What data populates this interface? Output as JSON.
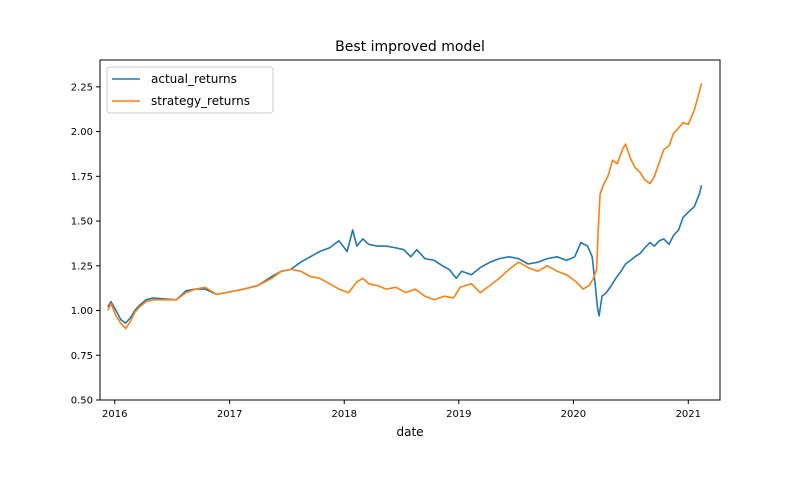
{
  "chart_data": {
    "type": "line",
    "title": "Best improved model",
    "xlabel": "date",
    "ylabel": "",
    "xlim": [
      "2015-11-15",
      "2021-04-12"
    ],
    "ylim": [
      0.5,
      2.4
    ],
    "x_ticks": [
      "2016",
      "2017",
      "2018",
      "2019",
      "2020",
      "2021"
    ],
    "y_ticks": [
      "0.50",
      "0.75",
      "1.00",
      "1.25",
      "1.50",
      "1.75",
      "2.00",
      "2.25"
    ],
    "grid": false,
    "legend_position": "top-left",
    "series": [
      {
        "name": "actual_returns",
        "color": "#1f77b4",
        "points": [
          [
            "2015-12-10",
            1.02
          ],
          [
            "2015-12-20",
            1.05
          ],
          [
            "2016-01-05",
            1.0
          ],
          [
            "2016-01-20",
            0.95
          ],
          [
            "2016-02-05",
            0.93
          ],
          [
            "2016-02-20",
            0.96
          ],
          [
            "2016-03-05",
            1.0
          ],
          [
            "2016-03-20",
            1.03
          ],
          [
            "2016-04-10",
            1.06
          ],
          [
            "2016-05-01",
            1.07
          ],
          [
            "2016-07-15",
            1.06
          ],
          [
            "2016-08-15",
            1.11
          ],
          [
            "2016-09-15",
            1.12
          ],
          [
            "2016-10-15",
            1.12
          ],
          [
            "2016-11-20",
            1.09
          ],
          [
            "2016-12-20",
            1.1
          ],
          [
            "2017-02-15",
            1.12
          ],
          [
            "2017-04-01",
            1.14
          ],
          [
            "2017-05-15",
            1.19
          ],
          [
            "2017-06-15",
            1.22
          ],
          [
            "2017-07-15",
            1.23
          ],
          [
            "2017-08-15",
            1.27
          ],
          [
            "2017-09-15",
            1.3
          ],
          [
            "2017-10-15",
            1.33
          ],
          [
            "2017-11-15",
            1.35
          ],
          [
            "2017-12-15",
            1.39
          ],
          [
            "2018-01-10",
            1.33
          ],
          [
            "2018-01-28",
            1.45
          ],
          [
            "2018-02-10",
            1.36
          ],
          [
            "2018-03-01",
            1.4
          ],
          [
            "2018-03-20",
            1.37
          ],
          [
            "2018-04-15",
            1.36
          ],
          [
            "2018-05-15",
            1.36
          ],
          [
            "2018-06-15",
            1.35
          ],
          [
            "2018-07-10",
            1.34
          ],
          [
            "2018-08-01",
            1.3
          ],
          [
            "2018-08-20",
            1.34
          ],
          [
            "2018-09-15",
            1.29
          ],
          [
            "2018-10-15",
            1.28
          ],
          [
            "2018-11-10",
            1.25
          ],
          [
            "2018-12-01",
            1.23
          ],
          [
            "2018-12-24",
            1.18
          ],
          [
            "2019-01-10",
            1.22
          ],
          [
            "2019-02-10",
            1.2
          ],
          [
            "2019-03-10",
            1.24
          ],
          [
            "2019-04-10",
            1.27
          ],
          [
            "2019-05-10",
            1.29
          ],
          [
            "2019-06-10",
            1.3
          ],
          [
            "2019-07-10",
            1.29
          ],
          [
            "2019-08-10",
            1.26
          ],
          [
            "2019-09-10",
            1.27
          ],
          [
            "2019-10-10",
            1.29
          ],
          [
            "2019-11-10",
            1.3
          ],
          [
            "2019-12-10",
            1.28
          ],
          [
            "2020-01-05",
            1.3
          ],
          [
            "2020-01-25",
            1.38
          ],
          [
            "2020-02-15",
            1.36
          ],
          [
            "2020-03-01",
            1.3
          ],
          [
            "2020-03-10",
            1.15
          ],
          [
            "2020-03-18",
            1.01
          ],
          [
            "2020-03-23",
            0.97
          ],
          [
            "2020-04-01",
            1.08
          ],
          [
            "2020-04-15",
            1.1
          ],
          [
            "2020-05-01",
            1.14
          ],
          [
            "2020-05-15",
            1.18
          ],
          [
            "2020-06-01",
            1.22
          ],
          [
            "2020-06-15",
            1.26
          ],
          [
            "2020-07-01",
            1.28
          ],
          [
            "2020-07-15",
            1.3
          ],
          [
            "2020-08-01",
            1.32
          ],
          [
            "2020-08-15",
            1.35
          ],
          [
            "2020-09-01",
            1.38
          ],
          [
            "2020-09-15",
            1.36
          ],
          [
            "2020-10-01",
            1.39
          ],
          [
            "2020-10-15",
            1.4
          ],
          [
            "2020-11-01",
            1.37
          ],
          [
            "2020-11-15",
            1.42
          ],
          [
            "2020-12-01",
            1.45
          ],
          [
            "2020-12-15",
            1.52
          ],
          [
            "2021-01-01",
            1.55
          ],
          [
            "2021-01-20",
            1.58
          ],
          [
            "2021-02-05",
            1.65
          ],
          [
            "2021-02-12",
            1.7
          ]
        ]
      },
      {
        "name": "strategy_returns",
        "color": "#ff7f0e",
        "points": [
          [
            "2015-12-10",
            1.0
          ],
          [
            "2015-12-20",
            1.04
          ],
          [
            "2016-01-05",
            0.97
          ],
          [
            "2016-01-20",
            0.93
          ],
          [
            "2016-02-05",
            0.9
          ],
          [
            "2016-02-20",
            0.94
          ],
          [
            "2016-03-05",
            0.99
          ],
          [
            "2016-03-20",
            1.02
          ],
          [
            "2016-04-10",
            1.05
          ],
          [
            "2016-05-01",
            1.06
          ],
          [
            "2016-07-15",
            1.06
          ],
          [
            "2016-08-15",
            1.1
          ],
          [
            "2016-09-15",
            1.12
          ],
          [
            "2016-10-15",
            1.13
          ],
          [
            "2016-11-20",
            1.09
          ],
          [
            "2016-12-20",
            1.1
          ],
          [
            "2017-02-15",
            1.12
          ],
          [
            "2017-04-01",
            1.14
          ],
          [
            "2017-05-15",
            1.18
          ],
          [
            "2017-06-15",
            1.22
          ],
          [
            "2017-07-15",
            1.23
          ],
          [
            "2017-08-15",
            1.22
          ],
          [
            "2017-09-15",
            1.19
          ],
          [
            "2017-10-15",
            1.18
          ],
          [
            "2017-11-15",
            1.15
          ],
          [
            "2017-12-15",
            1.12
          ],
          [
            "2018-01-15",
            1.1
          ],
          [
            "2018-02-10",
            1.16
          ],
          [
            "2018-03-01",
            1.18
          ],
          [
            "2018-03-20",
            1.15
          ],
          [
            "2018-04-15",
            1.14
          ],
          [
            "2018-05-15",
            1.12
          ],
          [
            "2018-06-15",
            1.13
          ],
          [
            "2018-07-15",
            1.1
          ],
          [
            "2018-08-15",
            1.12
          ],
          [
            "2018-09-15",
            1.08
          ],
          [
            "2018-10-15",
            1.06
          ],
          [
            "2018-11-15",
            1.08
          ],
          [
            "2018-12-15",
            1.07
          ],
          [
            "2019-01-05",
            1.13
          ],
          [
            "2019-02-10",
            1.15
          ],
          [
            "2019-03-10",
            1.1
          ],
          [
            "2019-04-10",
            1.14
          ],
          [
            "2019-05-10",
            1.18
          ],
          [
            "2019-06-10",
            1.23
          ],
          [
            "2019-07-10",
            1.27
          ],
          [
            "2019-08-10",
            1.24
          ],
          [
            "2019-09-10",
            1.22
          ],
          [
            "2019-10-10",
            1.25
          ],
          [
            "2019-11-10",
            1.22
          ],
          [
            "2019-12-10",
            1.2
          ],
          [
            "2020-01-10",
            1.16
          ],
          [
            "2020-02-01",
            1.12
          ],
          [
            "2020-02-20",
            1.14
          ],
          [
            "2020-03-05",
            1.18
          ],
          [
            "2020-03-15",
            1.23
          ],
          [
            "2020-03-20",
            1.45
          ],
          [
            "2020-03-26",
            1.65
          ],
          [
            "2020-04-05",
            1.7
          ],
          [
            "2020-04-20",
            1.75
          ],
          [
            "2020-05-05",
            1.84
          ],
          [
            "2020-05-20",
            1.82
          ],
          [
            "2020-06-05",
            1.9
          ],
          [
            "2020-06-15",
            1.93
          ],
          [
            "2020-07-01",
            1.85
          ],
          [
            "2020-07-15",
            1.8
          ],
          [
            "2020-08-01",
            1.77
          ],
          [
            "2020-08-15",
            1.73
          ],
          [
            "2020-09-01",
            1.71
          ],
          [
            "2020-09-15",
            1.75
          ],
          [
            "2020-10-01",
            1.83
          ],
          [
            "2020-10-15",
            1.9
          ],
          [
            "2020-11-01",
            1.92
          ],
          [
            "2020-11-15",
            1.99
          ],
          [
            "2020-12-01",
            2.02
          ],
          [
            "2020-12-15",
            2.05
          ],
          [
            "2021-01-01",
            2.04
          ],
          [
            "2021-01-20",
            2.12
          ],
          [
            "2021-02-05",
            2.22
          ],
          [
            "2021-02-12",
            2.27
          ]
        ]
      }
    ]
  }
}
